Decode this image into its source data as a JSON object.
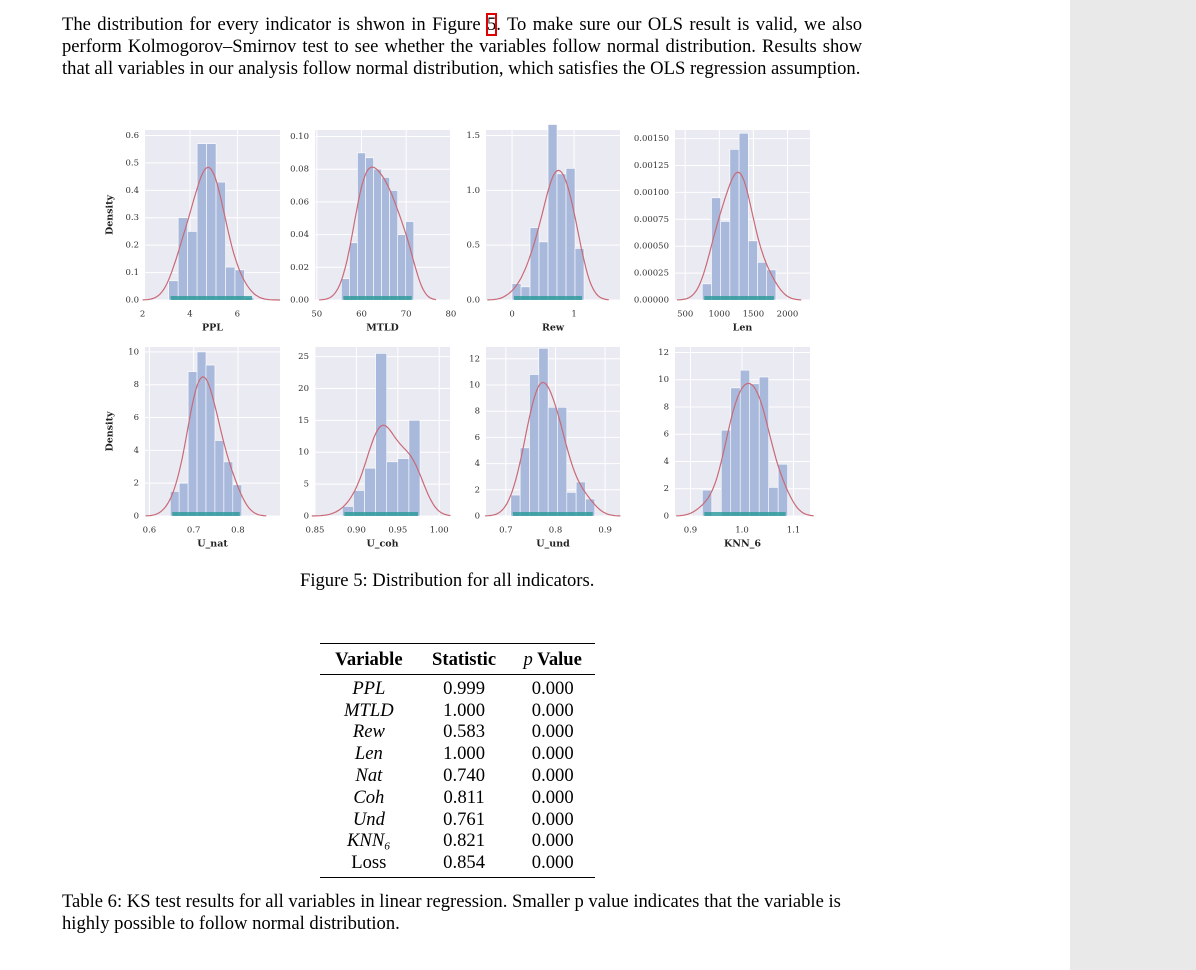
{
  "paragraph": [
    "The distribution for every indicator is shwon in Figure ",
    "5",
    ". To make sure our OLS result is valid, we also perform Kolmogorov–Smirnov test to see whether the variables follow normal distribution. Results show that all variables in our analysis follow normal distribution, which satisfies the OLS regression assumption."
  ],
  "chart_data": [
    {
      "type": "histogram",
      "x_label": "PPL",
      "y_label": "Density",
      "bins": [
        3.1,
        3.5,
        3.9,
        4.3,
        4.7,
        5.1,
        5.5,
        5.9,
        6.3,
        6.7
      ],
      "values": [
        0.07,
        0.3,
        0.25,
        0.57,
        0.57,
        0.43,
        0.12,
        0.11,
        0.01
      ],
      "xlim": [
        2.1,
        7.8
      ],
      "ylim": [
        0,
        0.62
      ],
      "xticks": [
        2,
        4,
        6
      ],
      "yticks": [
        {
          "value": 0,
          "label": "0.0"
        },
        0.1,
        0.2,
        0.3,
        0.4,
        0.5,
        0.6
      ],
      "color": "#a9b9dc",
      "kde_color": "#c96a77",
      "grid": true
    },
    {
      "type": "histogram",
      "x_label": "MTLD",
      "bins": [
        55.5,
        57.3,
        59.1,
        60.9,
        62.7,
        64.5,
        66.3,
        68.1,
        69.9,
        71.7
      ],
      "values": [
        0.013,
        0.035,
        0.09,
        0.087,
        0.08,
        0.075,
        0.067,
        0.04,
        0.048
      ],
      "xlim": [
        49.6,
        79.8
      ],
      "ylim": [
        0,
        0.104
      ],
      "xticks": [
        50,
        60,
        70,
        80
      ],
      "yticks": [
        {
          "value": 0,
          "label": "0.00"
        },
        {
          "value": 0.02,
          "label": "0.02"
        },
        {
          "value": 0.04,
          "label": "0.04"
        },
        {
          "value": 0.06,
          "label": "0.06"
        },
        {
          "value": 0.08,
          "label": "0.08"
        },
        {
          "value": 0.1,
          "label": "0.10"
        }
      ],
      "color": "#a9b9dc",
      "kde_color": "#c96a77",
      "grid": true
    },
    {
      "type": "histogram",
      "x_label": "Rew",
      "bins": [
        0,
        0.145,
        0.29,
        0.435,
        0.58,
        0.725,
        0.87,
        1.015,
        1.16
      ],
      "values": [
        0.15,
        0.12,
        0.66,
        0.53,
        1.6,
        1.15,
        1.2,
        0.47
      ],
      "xlim": [
        -0.42,
        1.74
      ],
      "ylim": [
        0,
        1.55
      ],
      "xticks": [
        0,
        1
      ],
      "yticks": [
        {
          "value": 0,
          "label": "0.0"
        },
        0.5,
        {
          "value": 1,
          "label": "1.0"
        },
        1.5
      ],
      "color": "#a9b9dc",
      "kde_color": "#c96a77",
      "grid": true
    },
    {
      "type": "histogram",
      "x_label": "Len",
      "bins": [
        750,
        885,
        1020,
        1155,
        1290,
        1425,
        1560,
        1695,
        1830
      ],
      "values": [
        0.00015,
        0.00095,
        0.00073,
        0.0014,
        0.00155,
        0.00055,
        0.00035,
        0.00028
      ],
      "xlim": [
        350,
        2330
      ],
      "ylim": [
        0,
        0.00158
      ],
      "xticks": [
        500,
        1000,
        1500,
        2000
      ],
      "yticks": [
        {
          "value": 0,
          "label": "0.00000"
        },
        {
          "value": 0.00025,
          "label": "0.00025"
        },
        {
          "value": 0.0005,
          "label": "0.00050"
        },
        {
          "value": 0.00075,
          "label": "0.00075"
        },
        {
          "value": 0.001,
          "label": "0.00100"
        },
        {
          "value": 0.00125,
          "label": "0.00125"
        },
        {
          "value": 0.0015,
          "label": "0.00150"
        }
      ],
      "color": "#a9b9dc",
      "kde_color": "#c96a77",
      "grid": true
    },
    {
      "type": "histogram",
      "x_label": "U_nat",
      "y_label": "Density",
      "bins": [
        0.647,
        0.6672,
        0.6874,
        0.7076,
        0.7278,
        0.748,
        0.7682,
        0.7884,
        0.8086
      ],
      "values": [
        1.5,
        2,
        8.8,
        10,
        9.2,
        4.6,
        3.3,
        1.9
      ],
      "xlim": [
        0.59,
        0.895
      ],
      "ylim": [
        0,
        10.3
      ],
      "xticks": [
        0.6,
        0.7,
        0.8
      ],
      "yticks": [
        0,
        2,
        4,
        6,
        8,
        10
      ],
      "color": "#a9b9dc",
      "kde_color": "#c96a77",
      "grid": true
    },
    {
      "type": "histogram",
      "x_label": "U_coh",
      "bins": [
        0.883,
        0.8964,
        0.9098,
        0.9232,
        0.9366,
        0.95,
        0.9634,
        0.9768
      ],
      "values": [
        1.5,
        4,
        7.5,
        25.5,
        8.5,
        9,
        15
      ],
      "xlim": [
        0.85,
        1.013
      ],
      "ylim": [
        0,
        26.5
      ],
      "xticks": [
        0.85,
        {
          "value": 0.9,
          "label": "0.90"
        },
        0.95,
        {
          "value": 1,
          "label": "1.00"
        }
      ],
      "yticks": [
        0,
        5,
        10,
        15,
        20,
        25
      ],
      "color": "#a9b9dc",
      "kde_color": "#c96a77",
      "grid": true
    },
    {
      "type": "histogram",
      "x_label": "U_und",
      "bins": [
        0.71,
        0.7288,
        0.7476,
        0.7664,
        0.7852,
        0.804,
        0.8228,
        0.8416,
        0.8604,
        0.8792
      ],
      "values": [
        1.6,
        5.2,
        10.8,
        12.8,
        8.3,
        8.3,
        1.8,
        2.6,
        1.3
      ],
      "xlim": [
        0.66,
        0.93
      ],
      "ylim": [
        0,
        12.9
      ],
      "xticks": [
        0.7,
        0.8,
        0.9
      ],
      "yticks": [
        0,
        2,
        4,
        6,
        8,
        10,
        12
      ],
      "color": "#a9b9dc",
      "kde_color": "#c96a77",
      "grid": true
    },
    {
      "type": "histogram",
      "x_label": "KNN_6",
      "bins": [
        0.923,
        0.9414,
        0.9598,
        0.9782,
        0.9966,
        1.015,
        1.0334,
        1.0518,
        1.0702,
        1.0886
      ],
      "values": [
        1.9,
        0,
        6.3,
        9.4,
        10.7,
        9.7,
        10.2,
        2.1,
        3.8
      ],
      "xlim": [
        0.87,
        1.132
      ],
      "ylim": [
        0,
        12.4
      ],
      "xticks": [
        0.9,
        {
          "value": 1,
          "label": "1.0"
        },
        1.1
      ],
      "yticks": [
        0,
        2,
        4,
        6,
        8,
        10,
        12
      ],
      "color": "#a9b9dc",
      "kde_color": "#c96a77",
      "grid": true
    }
  ],
  "figure_caption": "Figure 5: Distribution for all indicators.",
  "table": {
    "header": [
      "Variable",
      "Statistic",
      "p Value"
    ],
    "rows": [
      [
        "PPL",
        "0.999",
        "0.000"
      ],
      [
        "MTLD",
        "1.000",
        "0.000"
      ],
      [
        "Rew",
        "0.583",
        "0.000"
      ],
      [
        "Len",
        "1.000",
        "0.000"
      ],
      [
        "Nat",
        "0.740",
        "0.000"
      ],
      [
        "Coh",
        "0.811",
        "0.000"
      ],
      [
        "Und",
        "0.761",
        "0.000"
      ],
      [
        "KNN₆",
        "0.821",
        "0.000"
      ],
      [
        "Loss",
        "0.854",
        "0.000"
      ]
    ]
  },
  "table_caption": "Table 6: KS test results for all variables in linear regression. Smaller p value indicates that the variable is highly possible to follow normal distribution."
}
